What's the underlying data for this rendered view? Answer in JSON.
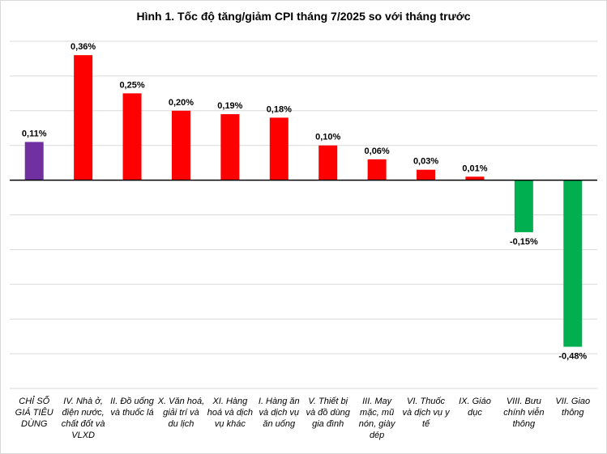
{
  "chart_data": {
    "type": "bar",
    "title": "Hình 1. Tốc độ tăng/giảm CPI tháng 7/2025 so với tháng trước",
    "xlabel": "",
    "ylabel": "",
    "ylim": [
      -0.6,
      0.4
    ],
    "grid": true,
    "categories": [
      "CHỈ SỐ GIÁ TIÊU DÙNG",
      "IV. Nhà ở, điện nước, chất đốt và VLXD",
      "II. Đồ uống và thuốc lá",
      "X. Văn hoá, giải trí và du lịch",
      "XI. Hàng hoá và dịch vụ khác",
      "I. Hàng ăn và dịch vụ ăn uống",
      "V. Thiết bị và đồ dùng gia đình",
      "III. May mặc, mũ nón, giày dép",
      "VI. Thuốc và dịch vụ y tế",
      "IX. Giáo dục",
      "VIII. Bưu chính viễn thông",
      "VII. Giao thông"
    ],
    "category_lines": [
      [
        "CHỈ SỐ",
        "GIÁ TIÊU",
        "DÙNG"
      ],
      [
        "IV. Nhà ở,",
        "điện nước,",
        "chất đốt và",
        "VLXD"
      ],
      [
        "II. Đồ uống",
        "và thuốc lá"
      ],
      [
        "X. Văn hoá,",
        "giải trí và",
        "du lịch"
      ],
      [
        "XI. Hàng",
        "hoá và dịch",
        "vụ khác"
      ],
      [
        "I. Hàng ăn",
        "và dịch vụ",
        "ăn uống"
      ],
      [
        "V. Thiết bị",
        "và đồ dùng",
        "gia đình"
      ],
      [
        "III. May",
        "mặc, mũ",
        "nón, giày",
        "dép"
      ],
      [
        "VI. Thuốc",
        "và dịch vụ y",
        "tế"
      ],
      [
        "IX. Giáo",
        "dục"
      ],
      [
        "VIII. Bưu",
        "chính viễn",
        "thông"
      ],
      [
        "VII. Giao",
        "thông"
      ]
    ],
    "values": [
      0.11,
      0.36,
      0.25,
      0.2,
      0.19,
      0.18,
      0.1,
      0.06,
      0.03,
      0.01,
      -0.15,
      -0.48
    ],
    "labels": [
      "0,11%",
      "0,36%",
      "0,25%",
      "0,20%",
      "0,19%",
      "0,18%",
      "0,10%",
      "0,06%",
      "0,03%",
      "0,01%",
      "-0,15%",
      "-0,48%"
    ],
    "colors": {
      "total": "#7030A0",
      "increase": "#FF0000",
      "decrease": "#00B050"
    }
  }
}
